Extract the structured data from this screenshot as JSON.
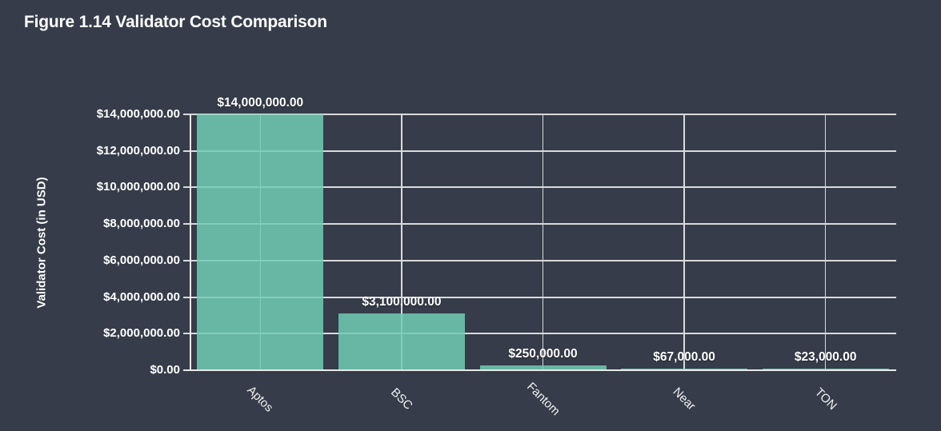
{
  "page": {
    "background_color": "#363c49",
    "text_color": "#ffffff"
  },
  "header": {
    "title": "Figure 1.14 Validator Cost Comparison"
  },
  "chart_data": {
    "type": "bar",
    "title": "Figure 1.14 Validator Cost Comparison",
    "categories": [
      "Aptos",
      "BSC",
      "Fantom",
      "Near",
      "TON"
    ],
    "values": [
      14000000,
      3100000,
      250000,
      67000,
      23000
    ],
    "value_labels": [
      "$14,000,000.00",
      "$3,100,000.00",
      "$250,000.00",
      "$67,000.00",
      "$23,000.00"
    ],
    "xlabel": "",
    "ylabel": "Validator Cost (in USD)",
    "ylim": [
      0,
      14000000
    ],
    "ytick_step": 2000000,
    "ytick_labels": [
      "$0.00",
      "$2,000,000.00",
      "$4,000,000.00",
      "$6,000,000.00",
      "$8,000,000.00",
      "$10,000,000.00",
      "$12,000,000.00",
      "$14,000,000.00"
    ],
    "grid": true,
    "legend_position": "none",
    "bar_color": "#71cbb4",
    "grid_color": "#d9dadd",
    "axis_color": "#e8e9eb"
  }
}
